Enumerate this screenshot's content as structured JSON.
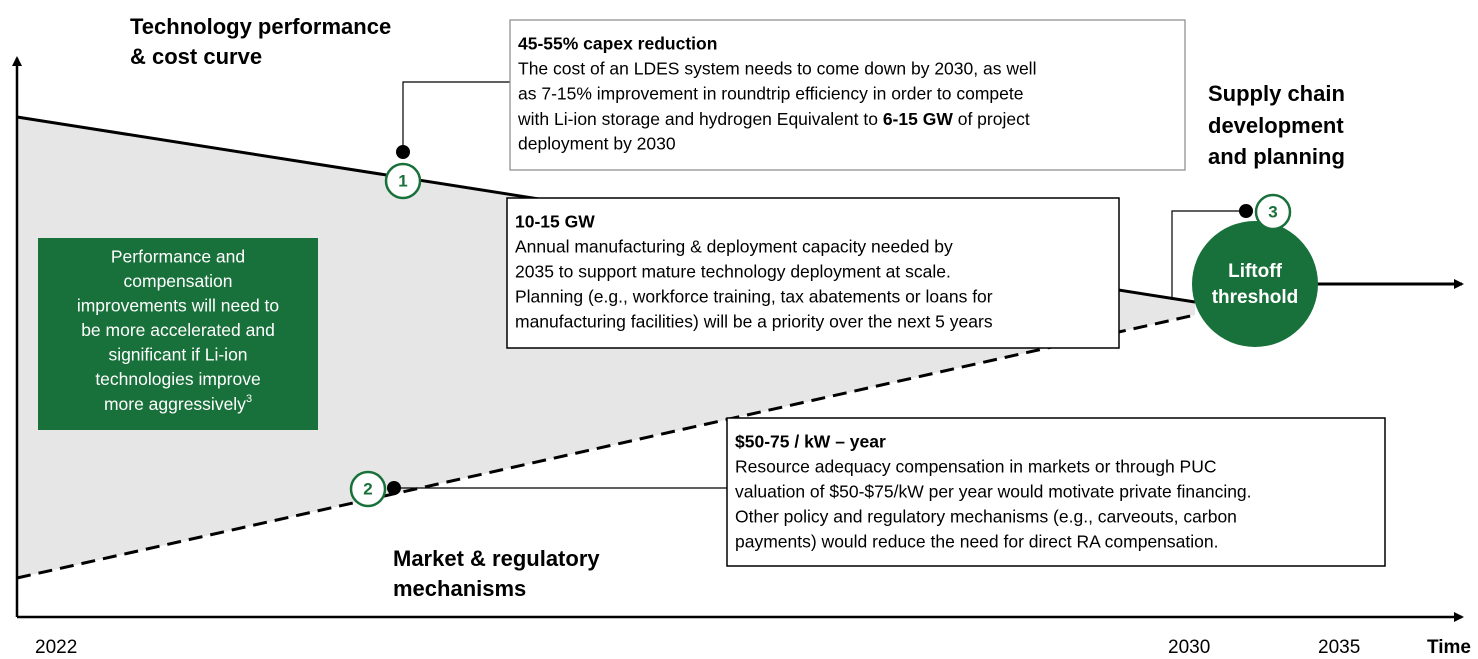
{
  "labels": {
    "technology": [
      "Technology performance",
      "& cost curve"
    ],
    "supply": [
      "Supply chain",
      "development",
      "and planning"
    ],
    "market": [
      "Market & regulatory",
      "mechanisms"
    ]
  },
  "markers": [
    "1",
    "2",
    "3"
  ],
  "liftoff": [
    "Liftoff",
    "threshold"
  ],
  "note": [
    "Performance and",
    "compensation",
    "improvements will need to",
    "be more accelerated and",
    "significant if Li-ion",
    "technologies improve",
    {
      "text": "more aggressively",
      "sup": "3"
    }
  ],
  "boxes": [
    {
      "title": "45-55% capex reduction",
      "lines": [
        "The cost of an LDES system needs to come down by 2030, as well",
        "as 7-15% improvement in roundtrip efficiency in order to compete",
        {
          "before": "with Li-ion storage and hydrogen Equivalent to ",
          "bold": "6-15 GW",
          "after": " of project"
        },
        "deployment by 2030"
      ]
    },
    {
      "title": "10-15 GW",
      "lines": [
        "Annual manufacturing & deployment capacity needed by",
        "2035 to support mature technology deployment at scale.",
        "Planning (e.g., workforce training, tax abatements or loans for",
        "manufacturing facilities) will be a priority over the next 5 years"
      ]
    },
    {
      "title": "$50-75 / kW – year",
      "lines": [
        "Resource adequacy compensation in markets or through PUC",
        "valuation of $50-$75/kW per year would motivate private financing.",
        "Other policy and regulatory mechanisms (e.g., carveouts, carbon",
        "payments) would reduce the need for direct RA compensation."
      ]
    }
  ],
  "axis": {
    "ticks": [
      "2022",
      "2030",
      "2035"
    ],
    "label": "Time"
  }
}
